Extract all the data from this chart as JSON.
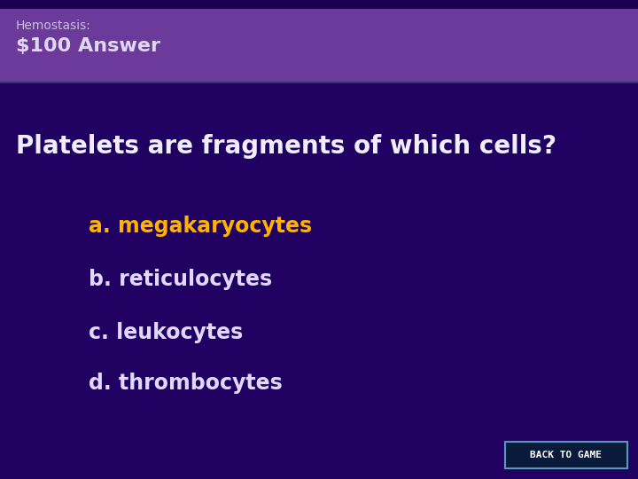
{
  "title_category": "Hemostasis:",
  "title_value": "$100 Answer",
  "question": "Platelets are fragments of which cells?",
  "answers": [
    {
      "label": "a. megakaryocytes",
      "color": "#FFB300"
    },
    {
      "label": "b. reticulocytes",
      "color": "#E0D8FF"
    },
    {
      "label": "c. leukocytes",
      "color": "#E0D8FF"
    },
    {
      "label": "d. thrombocytes",
      "color": "#E0D8FF"
    }
  ],
  "bg_main": "#200060",
  "bg_header": "#6B3A9A",
  "bg_header_top_strip": "#1A0050",
  "header_small_color": "#C8C0D8",
  "header_large_color": "#E0D8F0",
  "question_color": "#EEEEFF",
  "back_btn_text": "BACK TO GAME",
  "back_btn_bg": "#0A1A3A",
  "back_btn_border": "#5599BB",
  "fig_width": 7.2,
  "fig_height": 5.4,
  "dpi": 100
}
